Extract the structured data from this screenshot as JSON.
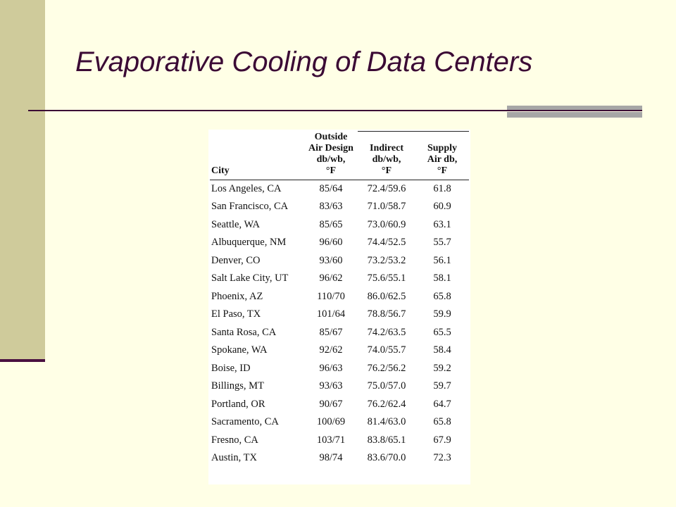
{
  "slide": {
    "title": "Evaporative Cooling of Data Centers"
  },
  "table": {
    "headers": [
      [
        "City"
      ],
      [
        "Outside",
        "Air Design",
        "db/wb,",
        "°F"
      ],
      [
        "Indirect",
        "db/wb,",
        "°F"
      ],
      [
        "Supply",
        "Air db,",
        "°F"
      ]
    ],
    "rows": [
      [
        "Los Angeles, CA",
        "85/64",
        "72.4/59.6",
        "61.8"
      ],
      [
        "San Francisco, CA",
        "83/63",
        "71.0/58.7",
        "60.9"
      ],
      [
        "Seattle, WA",
        "85/65",
        "73.0/60.9",
        "63.1"
      ],
      [
        "Albuquerque, NM",
        "96/60",
        "74.4/52.5",
        "55.7"
      ],
      [
        "Denver, CO",
        "93/60",
        "73.2/53.2",
        "56.1"
      ],
      [
        "Salt Lake City, UT",
        "96/62",
        "75.6/55.1",
        "58.1"
      ],
      [
        "Phoenix, AZ",
        "110/70",
        "86.0/62.5",
        "65.8"
      ],
      [
        "El Paso, TX",
        "101/64",
        "78.8/56.7",
        "59.9"
      ],
      [
        "Santa Rosa, CA",
        "85/67",
        "74.2/63.5",
        "65.5"
      ],
      [
        "Spokane, WA",
        "92/62",
        "74.0/55.7",
        "58.4"
      ],
      [
        "Boise, ID",
        "96/63",
        "76.2/56.2",
        "59.2"
      ],
      [
        "Billings, MT",
        "93/63",
        "75.0/57.0",
        "59.7"
      ],
      [
        "Portland, OR",
        "90/67",
        "76.2/62.4",
        "64.7"
      ],
      [
        "Sacramento, CA",
        "100/69",
        "81.4/63.0",
        "65.8"
      ],
      [
        "Fresno, CA",
        "103/71",
        "83.8/65.1",
        "67.9"
      ],
      [
        "Austin, TX",
        "98/74",
        "83.6/70.0",
        "72.3"
      ]
    ]
  }
}
